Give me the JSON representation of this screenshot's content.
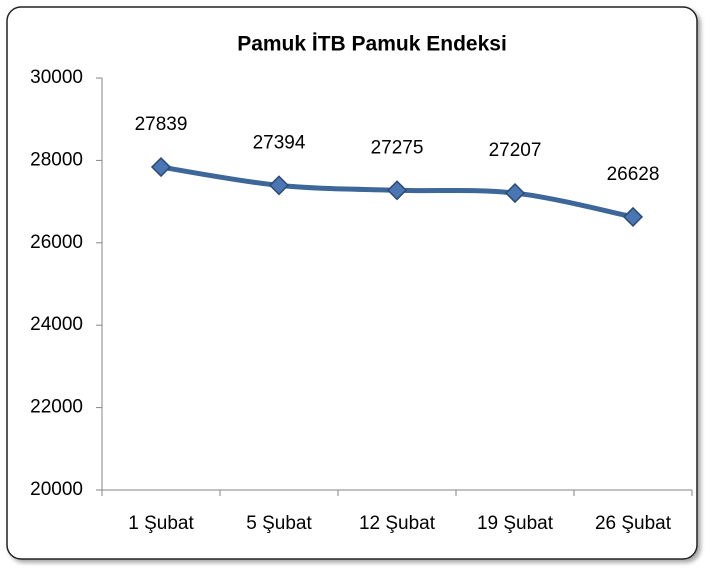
{
  "chart_data": {
    "type": "line",
    "title": "Pamuk İTB Pamuk Endeksi",
    "categories": [
      "1 Şubat",
      "5 Şubat",
      "12 Şubat",
      "19 Şubat",
      "26 Şubat"
    ],
    "series": [
      {
        "name": "Pamuk İTB Pamuk Endeksi",
        "color": "#3d6699",
        "values": [
          27839,
          27394,
          27275,
          27207,
          26628
        ]
      }
    ],
    "ylim": [
      20000,
      30000
    ],
    "yticks": [
      20000,
      22000,
      24000,
      26000,
      28000,
      30000
    ],
    "grid": false,
    "legend": false
  }
}
